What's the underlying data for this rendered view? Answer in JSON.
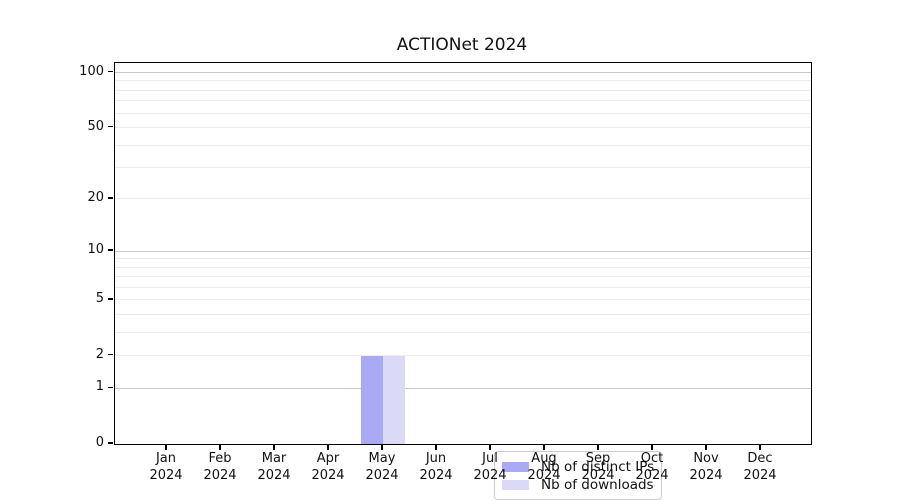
{
  "figure": {
    "title": "ACTIONet 2024",
    "background_color": "#ffffff"
  },
  "chart_data": {
    "type": "bar",
    "title": "ACTIONet 2024",
    "xlabel": "",
    "ylabel": "",
    "months": [
      "Jan",
      "Feb",
      "Mar",
      "Apr",
      "May",
      "Jun",
      "Jul",
      "Aug",
      "Sep",
      "Oct",
      "Nov",
      "Dec"
    ],
    "year": "2024",
    "series": [
      {
        "name": "Nb of distinct IPs",
        "color": "#a9a9f4",
        "values": [
          0,
          0,
          0,
          0,
          2,
          0,
          0,
          0,
          0,
          0,
          0,
          0
        ]
      },
      {
        "name": "Nb of downloads",
        "color": "#dadaf7",
        "values": [
          0,
          0,
          0,
          0,
          2,
          0,
          0,
          0,
          0,
          0,
          0,
          0
        ]
      }
    ],
    "y_scale": "log1p",
    "y_ticks": [
      0,
      1,
      2,
      5,
      10,
      20,
      50,
      100
    ],
    "ylim": [
      0,
      112.8
    ],
    "grid": {
      "major_values": [
        1,
        10,
        100
      ],
      "minor_values": [
        2,
        3,
        4,
        5,
        6,
        7,
        8,
        9,
        20,
        30,
        40,
        50,
        60,
        70,
        80,
        90
      ],
      "major_color": "#c6c6c6",
      "minor_color": "#ebebeb"
    },
    "legend": {
      "position": "lower center, inside axes",
      "entries": [
        "Nb of distinct IPs",
        "Nb of downloads"
      ]
    }
  }
}
